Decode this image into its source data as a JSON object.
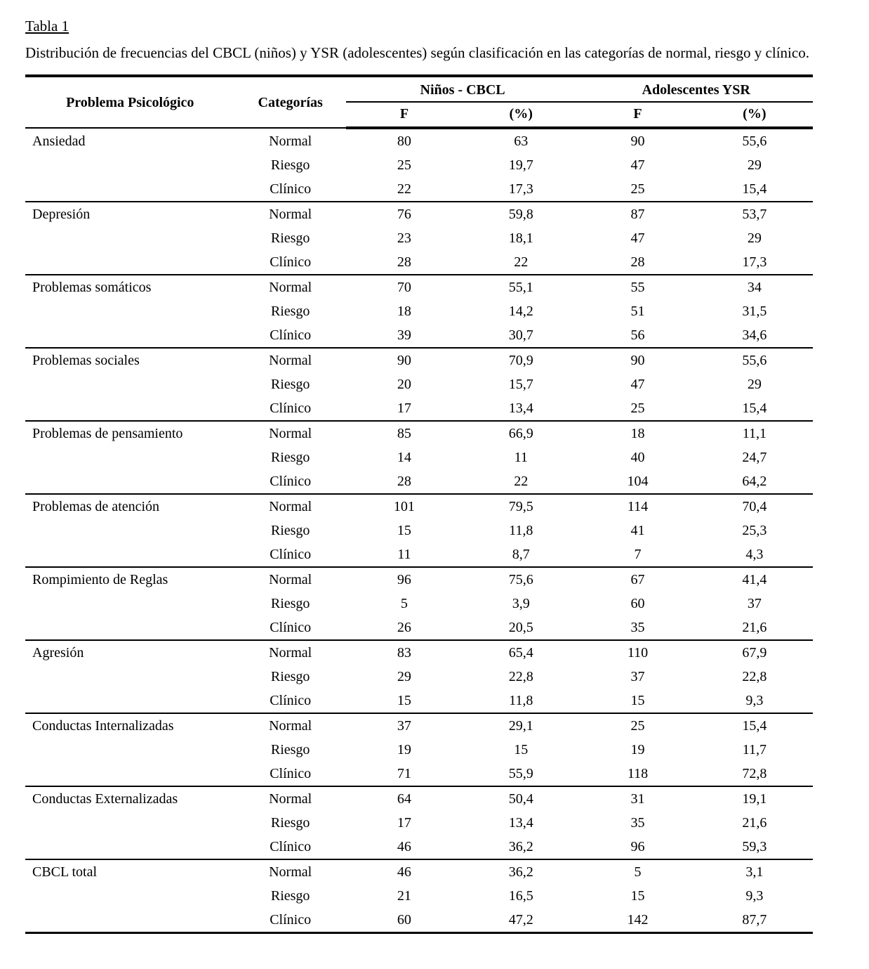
{
  "title": "Tabla 1",
  "caption": "Distribución de frecuencias del CBCL (niños) y YSR (adolescentes) según clasificación en las categorías de normal, riesgo y clínico.",
  "table": {
    "col_headers": {
      "problem": "Problema Psicológico",
      "category": "Categorías",
      "group1": "Niños - CBCL",
      "group2": "Adolescentes YSR",
      "f": "F",
      "pct": "(%)"
    },
    "groups": [
      {
        "problem": "Ansiedad",
        "rows": [
          {
            "category": "Normal",
            "cbcl_f": "80",
            "cbcl_pct": "63",
            "ysr_f": "90",
            "ysr_pct": "55,6"
          },
          {
            "category": "Riesgo",
            "cbcl_f": "25",
            "cbcl_pct": "19,7",
            "ysr_f": "47",
            "ysr_pct": "29"
          },
          {
            "category": "Clínico",
            "cbcl_f": "22",
            "cbcl_pct": "17,3",
            "ysr_f": "25",
            "ysr_pct": "15,4"
          }
        ]
      },
      {
        "problem": "Depresión",
        "rows": [
          {
            "category": "Normal",
            "cbcl_f": "76",
            "cbcl_pct": "59,8",
            "ysr_f": "87",
            "ysr_pct": "53,7"
          },
          {
            "category": "Riesgo",
            "cbcl_f": "23",
            "cbcl_pct": "18,1",
            "ysr_f": "47",
            "ysr_pct": "29"
          },
          {
            "category": "Clínico",
            "cbcl_f": "28",
            "cbcl_pct": "22",
            "ysr_f": "28",
            "ysr_pct": "17,3"
          }
        ]
      },
      {
        "problem": "Problemas somáticos",
        "rows": [
          {
            "category": "Normal",
            "cbcl_f": "70",
            "cbcl_pct": "55,1",
            "ysr_f": "55",
            "ysr_pct": "34"
          },
          {
            "category": "Riesgo",
            "cbcl_f": "18",
            "cbcl_pct": "14,2",
            "ysr_f": "51",
            "ysr_pct": "31,5"
          },
          {
            "category": "Clínico",
            "cbcl_f": "39",
            "cbcl_pct": "30,7",
            "ysr_f": "56",
            "ysr_pct": "34,6"
          }
        ]
      },
      {
        "problem": "Problemas sociales",
        "rows": [
          {
            "category": "Normal",
            "cbcl_f": "90",
            "cbcl_pct": "70,9",
            "ysr_f": "90",
            "ysr_pct": "55,6"
          },
          {
            "category": "Riesgo",
            "cbcl_f": "20",
            "cbcl_pct": "15,7",
            "ysr_f": "47",
            "ysr_pct": "29"
          },
          {
            "category": "Clínico",
            "cbcl_f": "17",
            "cbcl_pct": "13,4",
            "ysr_f": "25",
            "ysr_pct": "15,4"
          }
        ]
      },
      {
        "problem": "Problemas  de pensamiento",
        "rows": [
          {
            "category": "Normal",
            "cbcl_f": "85",
            "cbcl_pct": "66,9",
            "ysr_f": "18",
            "ysr_pct": "11,1"
          },
          {
            "category": "Riesgo",
            "cbcl_f": "14",
            "cbcl_pct": "11",
            "ysr_f": "40",
            "ysr_pct": "24,7"
          },
          {
            "category": "Clínico",
            "cbcl_f": "28",
            "cbcl_pct": "22",
            "ysr_f": "104",
            "ysr_pct": "64,2"
          }
        ]
      },
      {
        "problem": "Problemas de atención",
        "rows": [
          {
            "category": "Normal",
            "cbcl_f": "101",
            "cbcl_pct": "79,5",
            "ysr_f": "114",
            "ysr_pct": "70,4"
          },
          {
            "category": "Riesgo",
            "cbcl_f": "15",
            "cbcl_pct": "11,8",
            "ysr_f": "41",
            "ysr_pct": "25,3"
          },
          {
            "category": "Clínico",
            "cbcl_f": "11",
            "cbcl_pct": "8,7",
            "ysr_f": "7",
            "ysr_pct": "4,3"
          }
        ]
      },
      {
        "problem": "Rompimiento de Reglas",
        "rows": [
          {
            "category": "Normal",
            "cbcl_f": "96",
            "cbcl_pct": "75,6",
            "ysr_f": "67",
            "ysr_pct": "41,4"
          },
          {
            "category": "Riesgo",
            "cbcl_f": "5",
            "cbcl_pct": "3,9",
            "ysr_f": "60",
            "ysr_pct": "37"
          },
          {
            "category": "Clínico",
            "cbcl_f": "26",
            "cbcl_pct": "20,5",
            "ysr_f": "35",
            "ysr_pct": "21,6"
          }
        ]
      },
      {
        "problem": "Agresión",
        "rows": [
          {
            "category": "Normal",
            "cbcl_f": "83",
            "cbcl_pct": "65,4",
            "ysr_f": "110",
            "ysr_pct": "67,9"
          },
          {
            "category": "Riesgo",
            "cbcl_f": "29",
            "cbcl_pct": "22,8",
            "ysr_f": "37",
            "ysr_pct": "22,8"
          },
          {
            "category": "Clínico",
            "cbcl_f": "15",
            "cbcl_pct": "11,8",
            "ysr_f": "15",
            "ysr_pct": "9,3"
          }
        ]
      },
      {
        "problem": "Conductas Internalizadas",
        "rows": [
          {
            "category": "Normal",
            "cbcl_f": "37",
            "cbcl_pct": "29,1",
            "ysr_f": "25",
            "ysr_pct": "15,4"
          },
          {
            "category": "Riesgo",
            "cbcl_f": "19",
            "cbcl_pct": "15",
            "ysr_f": "19",
            "ysr_pct": "11,7"
          },
          {
            "category": "Clínico",
            "cbcl_f": "71",
            "cbcl_pct": "55,9",
            "ysr_f": "118",
            "ysr_pct": "72,8"
          }
        ]
      },
      {
        "problem": "Conductas Externalizadas",
        "rows": [
          {
            "category": "Normal",
            "cbcl_f": "64",
            "cbcl_pct": "50,4",
            "ysr_f": "31",
            "ysr_pct": "19,1"
          },
          {
            "category": "Riesgo",
            "cbcl_f": "17",
            "cbcl_pct": "13,4",
            "ysr_f": "35",
            "ysr_pct": "21,6"
          },
          {
            "category": "Clínico",
            "cbcl_f": "46",
            "cbcl_pct": "36,2",
            "ysr_f": "96",
            "ysr_pct": "59,3"
          }
        ]
      },
      {
        "problem": "CBCL  total",
        "rows": [
          {
            "category": "Normal",
            "cbcl_f": "46",
            "cbcl_pct": "36,2",
            "ysr_f": "5",
            "ysr_pct": "3,1"
          },
          {
            "category": "Riesgo",
            "cbcl_f": "21",
            "cbcl_pct": "16,5",
            "ysr_f": "15",
            "ysr_pct": "9,3"
          },
          {
            "category": "Clínico",
            "cbcl_f": "60",
            "cbcl_pct": "47,2",
            "ysr_f": "142",
            "ysr_pct": "87,7"
          }
        ]
      }
    ]
  }
}
